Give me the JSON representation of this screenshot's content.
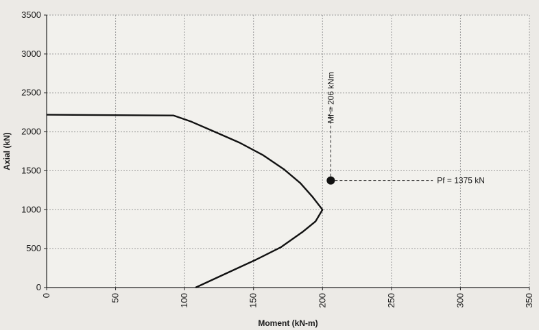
{
  "chart_data": {
    "type": "line",
    "title": "",
    "xlabel": "Moment (kN-m)",
    "ylabel": "Axial (kN)",
    "xlim": [
      0,
      350
    ],
    "ylim": [
      0,
      3500
    ],
    "x_ticks": [
      0,
      50,
      100,
      150,
      200,
      250,
      300,
      350
    ],
    "y_ticks": [
      0,
      500,
      1000,
      1500,
      2000,
      2500,
      3000,
      3500
    ],
    "grid": true,
    "series": [
      {
        "x": [
          0,
          92,
          105,
          122,
          140,
          157,
          172,
          184,
          193,
          200,
          195,
          186,
          170,
          152,
          130,
          108
        ],
        "y": [
          2220,
          2210,
          2130,
          2000,
          1860,
          1700,
          1520,
          1340,
          1160,
          1000,
          850,
          720,
          520,
          360,
          180,
          0
        ]
      }
    ],
    "annotations": [
      {
        "label": "Mf = 206 kNm",
        "x": 206,
        "y": 1375
      },
      {
        "label": "Pf = 1375 kN",
        "x": 206,
        "y": 1375
      }
    ],
    "point": {
      "x": 206,
      "y": 1375
    }
  }
}
